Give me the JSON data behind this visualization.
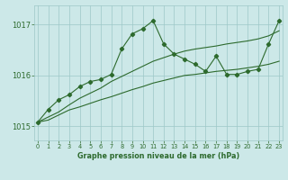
{
  "x": [
    0,
    1,
    2,
    3,
    4,
    5,
    6,
    7,
    8,
    9,
    10,
    11,
    12,
    13,
    14,
    15,
    16,
    17,
    18,
    19,
    20,
    21,
    22,
    23
  ],
  "y_main": [
    1015.08,
    1015.33,
    1015.52,
    1015.62,
    1015.78,
    1015.88,
    1015.92,
    1016.02,
    1016.52,
    1016.82,
    1016.92,
    1017.08,
    1016.62,
    1016.42,
    1016.32,
    1016.22,
    1016.08,
    1016.38,
    1016.02,
    1016.02,
    1016.08,
    1016.12,
    1016.62,
    1017.08
  ],
  "y_smooth1": [
    1015.08,
    1015.18,
    1015.28,
    1015.42,
    1015.55,
    1015.65,
    1015.75,
    1015.88,
    1015.98,
    1016.08,
    1016.18,
    1016.28,
    1016.35,
    1016.42,
    1016.48,
    1016.52,
    1016.55,
    1016.58,
    1016.62,
    1016.65,
    1016.68,
    1016.72,
    1016.78,
    1016.88
  ],
  "y_smooth2": [
    1015.08,
    1015.12,
    1015.22,
    1015.32,
    1015.38,
    1015.45,
    1015.52,
    1015.58,
    1015.65,
    1015.72,
    1015.78,
    1015.85,
    1015.9,
    1015.95,
    1016.0,
    1016.02,
    1016.05,
    1016.08,
    1016.1,
    1016.12,
    1016.15,
    1016.18,
    1016.22,
    1016.28
  ],
  "line_color": "#2d6a2d",
  "bg_color": "#cce8e8",
  "grid_color": "#9ec8c8",
  "xlabel": "Graphe pression niveau de la mer (hPa)",
  "yticks": [
    1015,
    1016,
    1017
  ],
  "ylim": [
    1014.72,
    1017.38
  ],
  "xlim": [
    -0.3,
    23.3
  ],
  "xticks": [
    0,
    1,
    2,
    3,
    4,
    5,
    6,
    7,
    8,
    9,
    10,
    11,
    12,
    13,
    14,
    15,
    16,
    17,
    18,
    19,
    20,
    21,
    22,
    23
  ]
}
